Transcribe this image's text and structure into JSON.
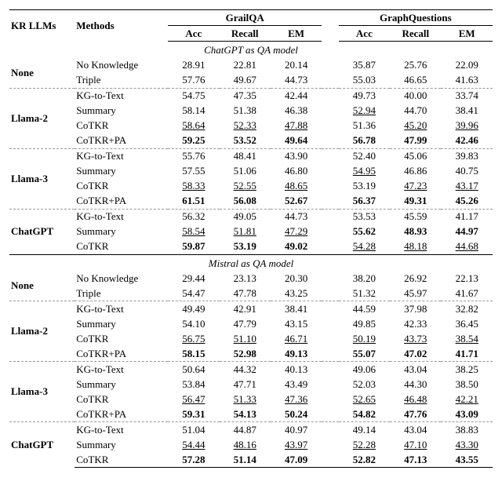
{
  "headers": {
    "kr": "KR LLMs",
    "methods": "Methods",
    "ds1": "GrailQA",
    "ds2": "GraphQuestions",
    "m1": "Acc",
    "m2": "Recall",
    "m3": "EM"
  },
  "sections": [
    {
      "title": "ChatGPT as QA model",
      "groups": [
        {
          "kr": "None",
          "rows": [
            {
              "method": "No Knowledge",
              "g": [
                "28.91",
                "22.81",
                "20.14"
              ],
              "q": [
                "35.87",
                "25.76",
                "22.09"
              ],
              "gstyle": [
                "",
                "",
                ""
              ],
              "qstyle": [
                "",
                "",
                ""
              ]
            },
            {
              "method": "Triple",
              "g": [
                "57.76",
                "49.67",
                "44.73"
              ],
              "q": [
                "55.03",
                "46.65",
                "41.63"
              ],
              "gstyle": [
                "",
                "",
                ""
              ],
              "qstyle": [
                "",
                "",
                ""
              ]
            }
          ]
        },
        {
          "kr": "Llama-2",
          "rows": [
            {
              "method": "KG-to-Text",
              "g": [
                "54.75",
                "47.35",
                "42.44"
              ],
              "q": [
                "49.73",
                "40.00",
                "33.74"
              ],
              "gstyle": [
                "",
                "",
                ""
              ],
              "qstyle": [
                "",
                "",
                ""
              ]
            },
            {
              "method": "Summary",
              "g": [
                "58.14",
                "51.38",
                "46.38"
              ],
              "q": [
                "52.94",
                "44.70",
                "38.41"
              ],
              "gstyle": [
                "",
                "",
                ""
              ],
              "qstyle": [
                "ul",
                "",
                ""
              ]
            },
            {
              "method": "CoTKR",
              "g": [
                "58.64",
                "52.33",
                "47.88"
              ],
              "q": [
                "51.36",
                "45.20",
                "39.96"
              ],
              "gstyle": [
                "ul",
                "ul",
                "ul"
              ],
              "qstyle": [
                "",
                "ul",
                "ul"
              ]
            },
            {
              "method": "CoTKR+PA",
              "g": [
                "59.25",
                "53.52",
                "49.64"
              ],
              "q": [
                "56.78",
                "47.99",
                "42.46"
              ],
              "gstyle": [
                "bold",
                "bold",
                "bold"
              ],
              "qstyle": [
                "bold",
                "bold",
                "bold"
              ]
            }
          ]
        },
        {
          "kr": "Llama-3",
          "rows": [
            {
              "method": "KG-to-Text",
              "g": [
                "55.76",
                "48.41",
                "43.90"
              ],
              "q": [
                "52.40",
                "45.06",
                "39.83"
              ],
              "gstyle": [
                "",
                "",
                ""
              ],
              "qstyle": [
                "",
                "",
                ""
              ]
            },
            {
              "method": "Summary",
              "g": [
                "57.55",
                "51.06",
                "46.80"
              ],
              "q": [
                "54.95",
                "46.86",
                "40.75"
              ],
              "gstyle": [
                "",
                "",
                ""
              ],
              "qstyle": [
                "ul",
                "",
                ""
              ]
            },
            {
              "method": "CoTKR",
              "g": [
                "58.33",
                "52.55",
                "48.65"
              ],
              "q": [
                "53.19",
                "47.23",
                "43.17"
              ],
              "gstyle": [
                "ul",
                "ul",
                "ul"
              ],
              "qstyle": [
                "",
                "ul",
                "ul"
              ]
            },
            {
              "method": "CoTKR+PA",
              "g": [
                "61.51",
                "56.08",
                "52.67"
              ],
              "q": [
                "56.37",
                "49.31",
                "45.26"
              ],
              "gstyle": [
                "bold",
                "bold",
                "bold"
              ],
              "qstyle": [
                "bold",
                "bold",
                "bold"
              ]
            }
          ]
        },
        {
          "kr": "ChatGPT",
          "rows": [
            {
              "method": "KG-to-Text",
              "g": [
                "56.32",
                "49.05",
                "44.73"
              ],
              "q": [
                "53.53",
                "45.59",
                "41.17"
              ],
              "gstyle": [
                "",
                "",
                ""
              ],
              "qstyle": [
                "",
                "",
                ""
              ]
            },
            {
              "method": "Summary",
              "g": [
                "58.54",
                "51.81",
                "47.29"
              ],
              "q": [
                "55.62",
                "48.93",
                "44.97"
              ],
              "gstyle": [
                "ul",
                "ul",
                "ul"
              ],
              "qstyle": [
                "bold",
                "bold",
                "bold"
              ]
            },
            {
              "method": "CoTKR",
              "g": [
                "59.87",
                "53.19",
                "49.02"
              ],
              "q": [
                "54.28",
                "48.18",
                "44.68"
              ],
              "gstyle": [
                "bold",
                "bold",
                "bold"
              ],
              "qstyle": [
                "ul",
                "ul",
                "ul"
              ]
            }
          ]
        }
      ]
    },
    {
      "title": "Mistral as QA model",
      "groups": [
        {
          "kr": "None",
          "rows": [
            {
              "method": "No Knowledge",
              "g": [
                "29.44",
                "23.13",
                "20.30"
              ],
              "q": [
                "38.20",
                "26.92",
                "22.13"
              ],
              "gstyle": [
                "",
                "",
                ""
              ],
              "qstyle": [
                "",
                "",
                ""
              ]
            },
            {
              "method": "Triple",
              "g": [
                "54.47",
                "47.78",
                "43.25"
              ],
              "q": [
                "51.32",
                "45.97",
                "41.67"
              ],
              "gstyle": [
                "",
                "",
                ""
              ],
              "qstyle": [
                "",
                "",
                ""
              ]
            }
          ]
        },
        {
          "kr": "Llama-2",
          "rows": [
            {
              "method": "KG-to-Text",
              "g": [
                "49.49",
                "42.91",
                "38.41"
              ],
              "q": [
                "44.59",
                "37.98",
                "32.82"
              ],
              "gstyle": [
                "",
                "",
                ""
              ],
              "qstyle": [
                "",
                "",
                ""
              ]
            },
            {
              "method": "Summary",
              "g": [
                "54.10",
                "47.79",
                "43.15"
              ],
              "q": [
                "49.85",
                "42.33",
                "36.45"
              ],
              "gstyle": [
                "",
                "",
                ""
              ],
              "qstyle": [
                "",
                "",
                ""
              ]
            },
            {
              "method": "CoTKR",
              "g": [
                "56.75",
                "51.10",
                "46.71"
              ],
              "q": [
                "50.19",
                "43.73",
                "38.54"
              ],
              "gstyle": [
                "ul",
                "ul",
                "ul"
              ],
              "qstyle": [
                "ul",
                "ul",
                "ul"
              ]
            },
            {
              "method": "CoTKR+PA",
              "g": [
                "58.15",
                "52.98",
                "49.13"
              ],
              "q": [
                "55.07",
                "47.02",
                "41.71"
              ],
              "gstyle": [
                "bold",
                "bold",
                "bold"
              ],
              "qstyle": [
                "bold",
                "bold",
                "bold"
              ]
            }
          ]
        },
        {
          "kr": "Llama-3",
          "rows": [
            {
              "method": "KG-to-Text",
              "g": [
                "50.64",
                "44.32",
                "40.13"
              ],
              "q": [
                "49.06",
                "43.04",
                "38.25"
              ],
              "gstyle": [
                "",
                "",
                ""
              ],
              "qstyle": [
                "",
                "",
                ""
              ]
            },
            {
              "method": "Summary",
              "g": [
                "53.84",
                "47.71",
                "43.49"
              ],
              "q": [
                "52.03",
                "44.30",
                "38.50"
              ],
              "gstyle": [
                "",
                "",
                ""
              ],
              "qstyle": [
                "",
                "",
                ""
              ]
            },
            {
              "method": "CoTKR",
              "g": [
                "56.47",
                "51.33",
                "47.36"
              ],
              "q": [
                "52.65",
                "46.48",
                "42.21"
              ],
              "gstyle": [
                "ul",
                "ul",
                "ul"
              ],
              "qstyle": [
                "ul",
                "ul",
                "ul"
              ]
            },
            {
              "method": "CoTKR+PA",
              "g": [
                "59.31",
                "54.13",
                "50.24"
              ],
              "q": [
                "54.82",
                "47.76",
                "43.09"
              ],
              "gstyle": [
                "bold",
                "bold",
                "bold"
              ],
              "qstyle": [
                "bold",
                "bold",
                "bold"
              ]
            }
          ]
        },
        {
          "kr": "ChatGPT",
          "rows": [
            {
              "method": "KG-to-Text",
              "g": [
                "51.04",
                "44.87",
                "40.97"
              ],
              "q": [
                "49.14",
                "43.04",
                "38.83"
              ],
              "gstyle": [
                "",
                "",
                ""
              ],
              "qstyle": [
                "",
                "",
                ""
              ]
            },
            {
              "method": "Summary",
              "g": [
                "54.44",
                "48.16",
                "43.97"
              ],
              "q": [
                "52.28",
                "47.10",
                "43.30"
              ],
              "gstyle": [
                "ul",
                "ul",
                "ul"
              ],
              "qstyle": [
                "ul",
                "ul",
                "ul"
              ]
            },
            {
              "method": "CoTKR",
              "g": [
                "57.28",
                "51.14",
                "47.09"
              ],
              "q": [
                "52.82",
                "47.13",
                "43.55"
              ],
              "gstyle": [
                "bold",
                "bold",
                "bold"
              ],
              "qstyle": [
                "bold",
                "bold",
                "bold"
              ]
            }
          ]
        }
      ]
    }
  ]
}
